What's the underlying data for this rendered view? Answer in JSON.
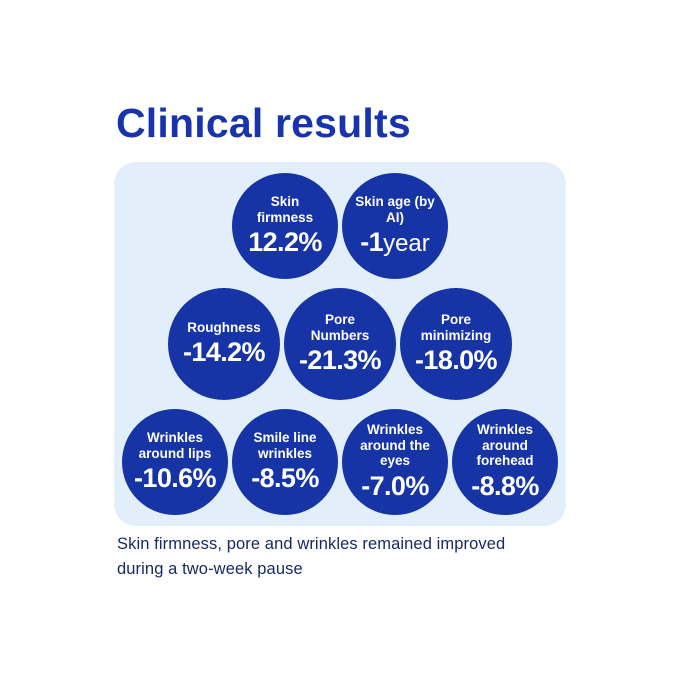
{
  "title": "Clinical results",
  "colors": {
    "accent_blue": "#1634a6",
    "title_blue": "#1733ad",
    "panel_bg": "#e2effa",
    "caption_navy": "#172a66"
  },
  "panel": {
    "rows": [
      {
        "circles": [
          {
            "id": "skin-firmness",
            "label": "Skin firmness",
            "value": "12.2%"
          },
          {
            "id": "skin-age",
            "label": "Skin age (by AI)",
            "value": "-1",
            "value_suffix": "year"
          }
        ]
      },
      {
        "circles": [
          {
            "id": "roughness",
            "label": "Roughness",
            "value": "-14.2%"
          },
          {
            "id": "pore-numbers",
            "label": "Pore Numbers",
            "value": "-21.3%"
          },
          {
            "id": "pore-minimizing",
            "label": "Pore minimizing",
            "value": "-18.0%"
          }
        ]
      },
      {
        "circles": [
          {
            "id": "wrinkles-around-lips",
            "label": "Wrinkles around lips",
            "value": "-10.6%"
          },
          {
            "id": "smile-line-wrinkles",
            "label": "Smile line wrinkles",
            "value": "-8.5%"
          },
          {
            "id": "wrinkles-around-eyes",
            "label": "Wrinkles around the eyes",
            "value": "-7.0%"
          },
          {
            "id": "wrinkles-around-forehead",
            "label": "Wrinkles around forehead",
            "value": "-8.8%"
          }
        ]
      }
    ]
  },
  "caption": {
    "line1": "Skin firmness, pore and wrinkles remained improved",
    "line2": "during a two-week pause"
  },
  "chart_data": {
    "type": "table",
    "title": "Clinical results",
    "categories": [
      "Skin firmness",
      "Skin age (by AI)",
      "Roughness",
      "Pore Numbers",
      "Pore minimizing",
      "Wrinkles around lips",
      "Smile line wrinkles",
      "Wrinkles around the eyes",
      "Wrinkles around forehead"
    ],
    "values": [
      "12.2%",
      "-1 year",
      "-14.2%",
      "-21.3%",
      "-18.0%",
      "-10.6%",
      "-8.5%",
      "-7.0%",
      "-8.8%"
    ],
    "note": "Skin firmness, pore and wrinkles remained improved during a two-week pause",
    "layout": "bubble infographic, 3 rows (2 / 3 / 4 circles) on light blue rounded panel"
  }
}
